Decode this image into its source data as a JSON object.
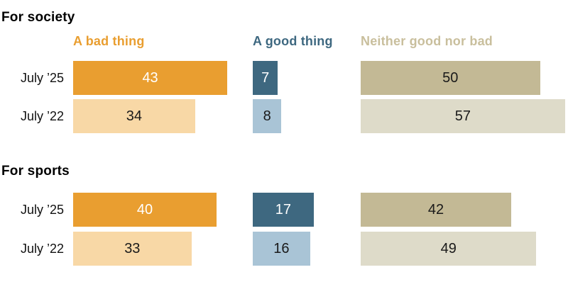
{
  "colors": {
    "bad_dark": "#E99E30",
    "bad_light": "#F8D8A6",
    "good_dark": "#3E6880",
    "good_light": "#A9C4D6",
    "neither_dark": "#C3B995",
    "neither_light": "#DEDBC9",
    "neither_legend": "#C9BF9D",
    "text_light": "#FFFFFF",
    "text_dark": "#1A1A1A"
  },
  "chart_data": {
    "type": "bar",
    "orientation": "horizontal",
    "unit": "percent",
    "grid": false,
    "legend_position": "top",
    "series_names": [
      "A bad thing",
      "A good thing",
      "Neither good nor bad"
    ],
    "legend": [
      {
        "label": "A bad thing"
      },
      {
        "label": "A good thing"
      },
      {
        "label": "Neither good nor bad"
      }
    ],
    "groups": [
      {
        "heading": "For society",
        "rows": [
          {
            "label": "July ’25",
            "values": {
              "bad": 43,
              "good": 7,
              "neither": 50
            }
          },
          {
            "label": "July ’22",
            "values": {
              "bad": 34,
              "good": 8,
              "neither": 57
            }
          }
        ]
      },
      {
        "heading": "For sports",
        "rows": [
          {
            "label": "July ’25",
            "values": {
              "bad": 40,
              "good": 17,
              "neither": 42
            }
          },
          {
            "label": "July ’22",
            "values": {
              "bad": 33,
              "good": 16,
              "neither": 49
            }
          }
        ]
      }
    ]
  }
}
